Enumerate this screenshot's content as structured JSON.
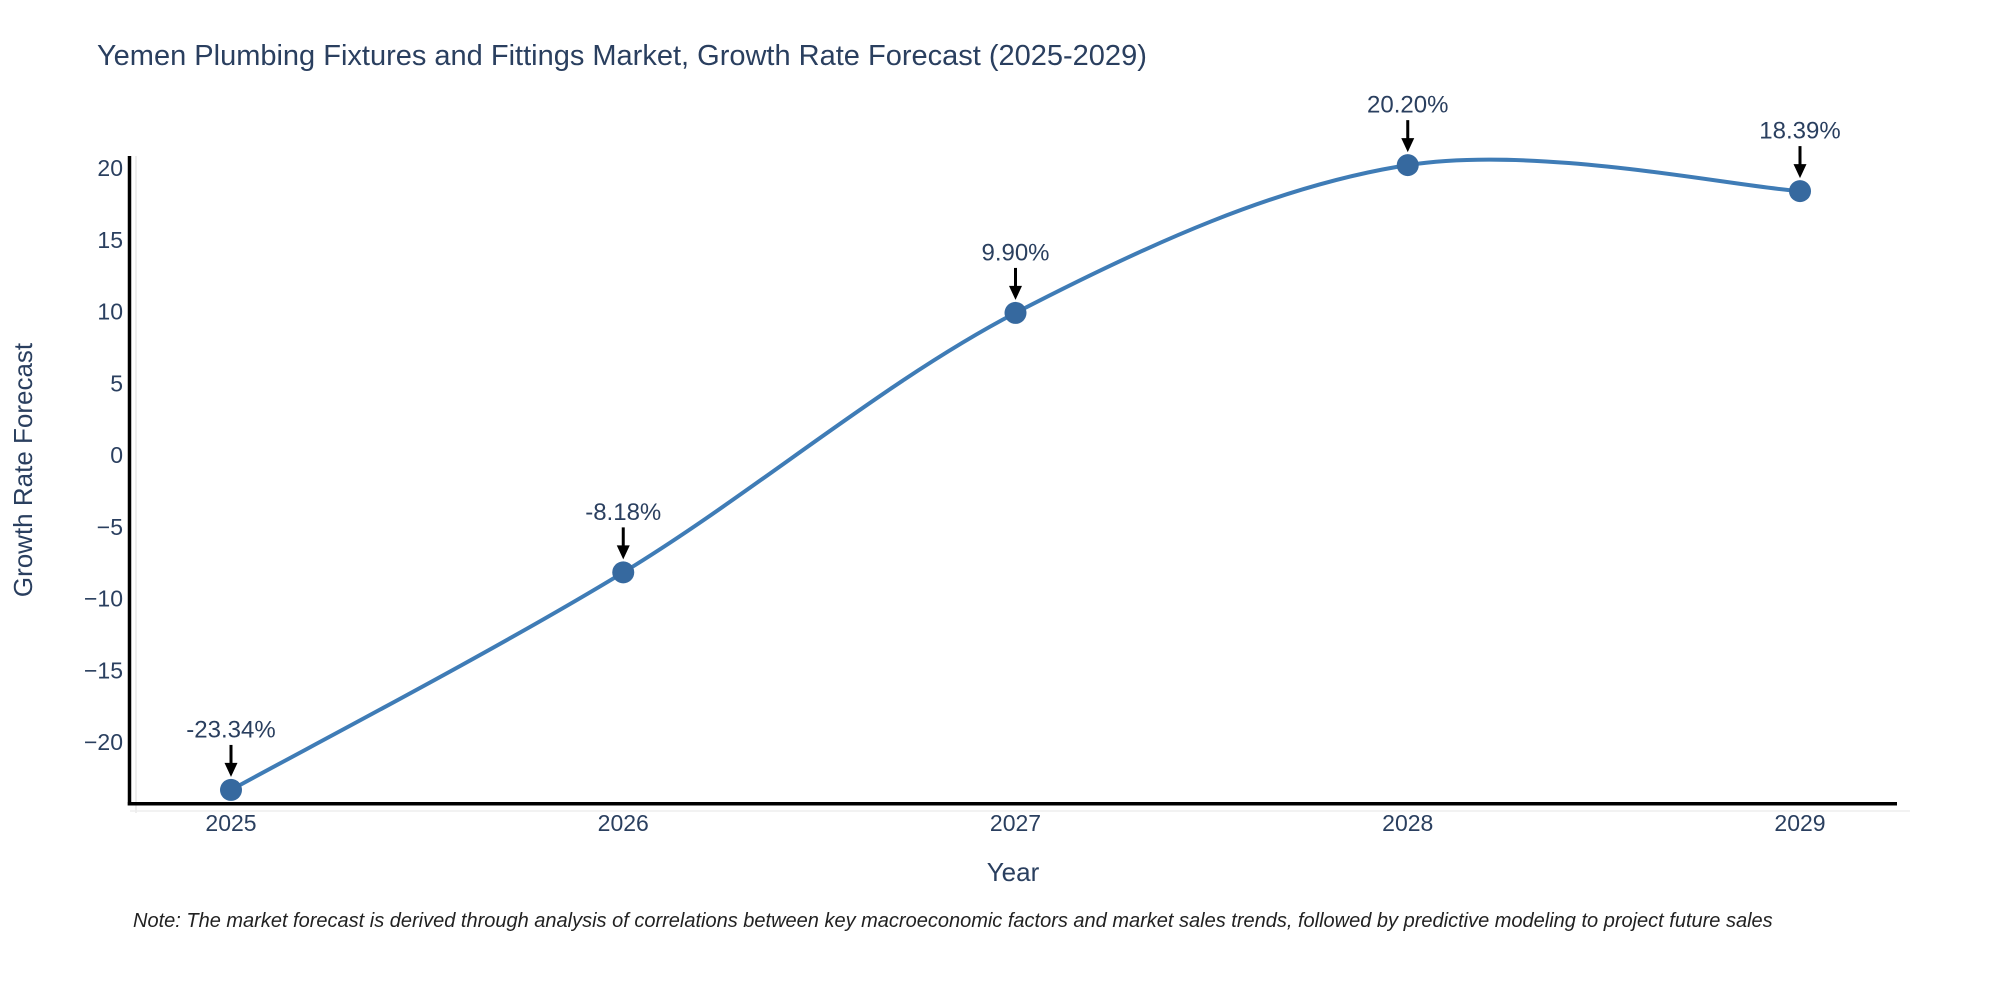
{
  "page": {
    "title": "Yemen Plumbing Fixtures and Fittings Market, Growth Rate Forecast (2025-2029)",
    "footnote": "Note: The market forecast is derived through analysis of correlations between key macroeconomic factors and market sales trends, followed by predictive modeling to project future sales"
  },
  "chart_data": {
    "type": "line",
    "title": "Yemen Plumbing Fixtures and Fittings Market, Growth Rate Forecast (2025-2029)",
    "xlabel": "Year",
    "ylabel": "Growth Rate Forecast",
    "x": [
      2025,
      2026,
      2027,
      2028,
      2029
    ],
    "values": [
      -23.34,
      -8.18,
      9.9,
      20.2,
      18.39
    ],
    "point_labels": [
      "-23.34%",
      "-8.18%",
      "9.90%",
      "20.20%",
      "18.39%"
    ],
    "xtick_labels": [
      "2025",
      "2026",
      "2027",
      "2028",
      "2029"
    ],
    "ytick_values": [
      20,
      15,
      10,
      5,
      0,
      -5,
      -10,
      -15,
      -20
    ],
    "ytick_labels": [
      "20",
      "15",
      "10",
      "5",
      "0",
      "−5",
      "−10",
      "−15",
      "−20"
    ],
    "ylim": [
      -24.4,
      20.8
    ],
    "grid": false,
    "legend": "none",
    "line_shape": "spline",
    "marker": "circle",
    "annotation_arrows": "down-to-point",
    "colors": {
      "line": "#3f7cb6",
      "marker": "#36699f",
      "axis_line": "#000000",
      "text": "#2a3f5f",
      "arrow": "#000000"
    }
  }
}
